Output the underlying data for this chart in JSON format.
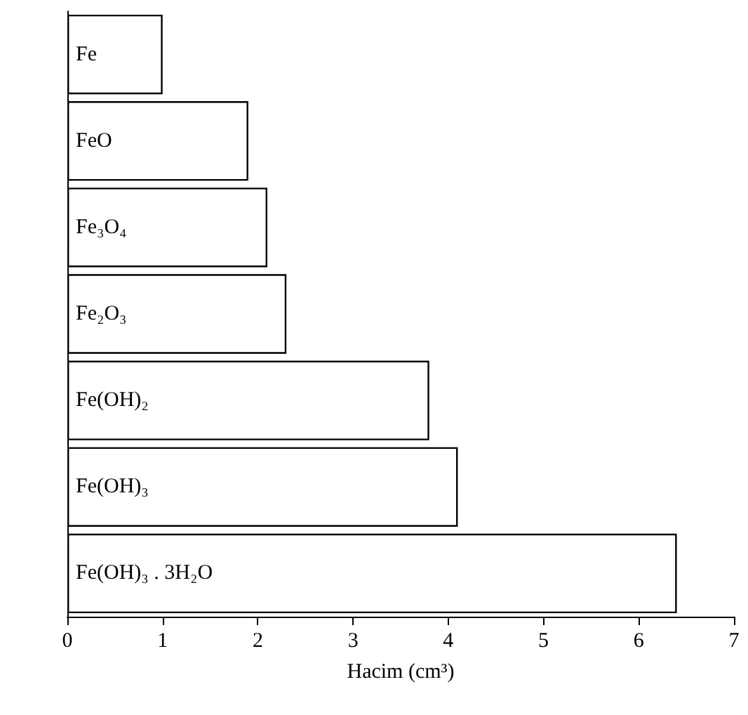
{
  "chart_data": {
    "type": "bar",
    "orientation": "horizontal",
    "categories": [
      "Fe",
      "FeO",
      "Fe₃O₄",
      "Fe₂O₃",
      "Fe(OH)₂",
      "Fe(OH)₃",
      "Fe(OH)₃ . 3H₂O"
    ],
    "values": [
      1,
      1.9,
      2.1,
      2.3,
      3.8,
      4.1,
      6.4
    ],
    "color": "#ffffff",
    "xlabel": "Hacim (cm³)",
    "xlim": [
      0,
      7
    ],
    "xticks": [
      0,
      1,
      2,
      3,
      4,
      5,
      6,
      7
    ],
    "grid": false
  }
}
